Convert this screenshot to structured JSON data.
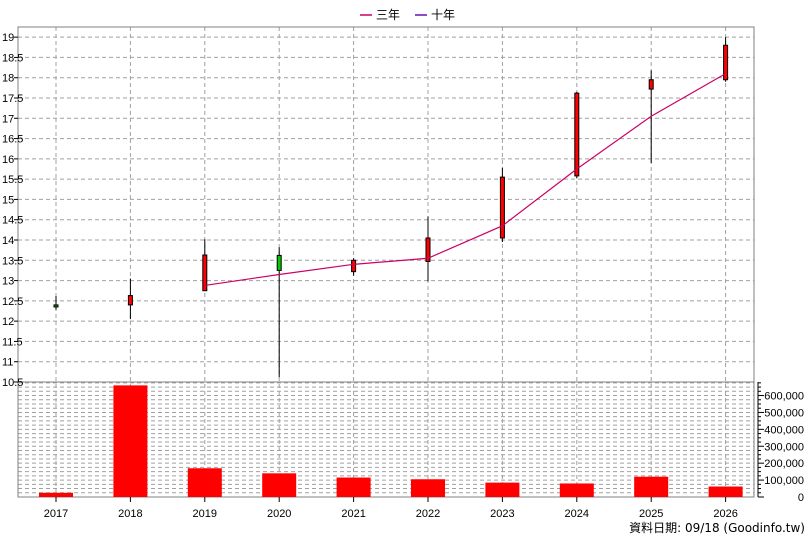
{
  "chart_data": {
    "type": "candlestick",
    "legend": {
      "placement": "top-center",
      "items": [
        {
          "label": "三年",
          "color": "#cc0066"
        },
        {
          "label": "十年",
          "color": "#6a0dad"
        }
      ]
    },
    "categories": [
      "2017",
      "2018",
      "2019",
      "2020",
      "2021",
      "2022",
      "2023",
      "2024",
      "2025",
      "2026"
    ],
    "price_axis": {
      "ticks": [
        "19",
        "18.5",
        "18",
        "17.5",
        "17",
        "16.5",
        "16",
        "15.5",
        "15",
        "14.5",
        "14",
        "13.5",
        "13",
        "12.5",
        "12",
        "11.5",
        "11",
        "10.5"
      ],
      "range": [
        10.5,
        19.25
      ]
    },
    "volume_axis": {
      "ticks": [
        "600,000",
        "500,000",
        "400,000",
        "300,000",
        "200,000",
        "100,000",
        "0"
      ],
      "tick_values": [
        600000,
        500000,
        400000,
        300000,
        200000,
        100000,
        0
      ],
      "range": [
        0,
        680000
      ]
    },
    "candles": [
      {
        "year": "2017",
        "open": 12.4,
        "close": 12.35,
        "high": 12.62,
        "low": 12.28,
        "color": "#00aa00"
      },
      {
        "year": "2018",
        "open": 12.4,
        "close": 12.63,
        "high": 13.05,
        "low": 12.05,
        "color": "#ff0000"
      },
      {
        "year": "2019",
        "open": 12.75,
        "close": 13.63,
        "high": 14.02,
        "low": 12.75,
        "color": "#ff0000"
      },
      {
        "year": "2020",
        "open": 13.62,
        "close": 13.25,
        "high": 13.82,
        "low": 10.62,
        "color": "#00cc00"
      },
      {
        "year": "2021",
        "open": 13.22,
        "close": 13.5,
        "high": 13.55,
        "low": 13.12,
        "color": "#ff0000"
      },
      {
        "year": "2022",
        "open": 13.47,
        "close": 14.05,
        "high": 14.58,
        "low": 12.98,
        "color": "#ff0000"
      },
      {
        "year": "2023",
        "open": 14.05,
        "close": 15.55,
        "high": 15.78,
        "low": 13.95,
        "color": "#ff0000"
      },
      {
        "year": "2024",
        "open": 15.58,
        "close": 17.62,
        "high": 17.65,
        "low": 15.52,
        "color": "#ff0000"
      },
      {
        "year": "2025",
        "open": 17.72,
        "close": 17.95,
        "high": 18.18,
        "low": 15.9,
        "color": "#ff0000"
      },
      {
        "year": "2026",
        "open": 17.95,
        "close": 18.8,
        "high": 19.0,
        "low": 17.9,
        "color": "#ff0000"
      }
    ],
    "three_year_line": {
      "name": "三年",
      "color": "#cc0066",
      "points": [
        {
          "year": "2019",
          "value": 12.88
        },
        {
          "year": "2020",
          "value": 13.15
        },
        {
          "year": "2021",
          "value": 13.4
        },
        {
          "year": "2022",
          "value": 13.55
        },
        {
          "year": "2023",
          "value": 14.35
        },
        {
          "year": "2024",
          "value": 15.75
        },
        {
          "year": "2025",
          "value": 17.05
        },
        {
          "year": "2026",
          "value": 18.1
        }
      ]
    },
    "volume": {
      "color": "#ff0000",
      "values": [
        25000,
        660000,
        170000,
        140000,
        115000,
        105000,
        85000,
        80000,
        120000,
        62000
      ]
    },
    "grid": true
  },
  "footer": {
    "text": "資料日期: 09/18  (Goodinfo.tw)"
  }
}
